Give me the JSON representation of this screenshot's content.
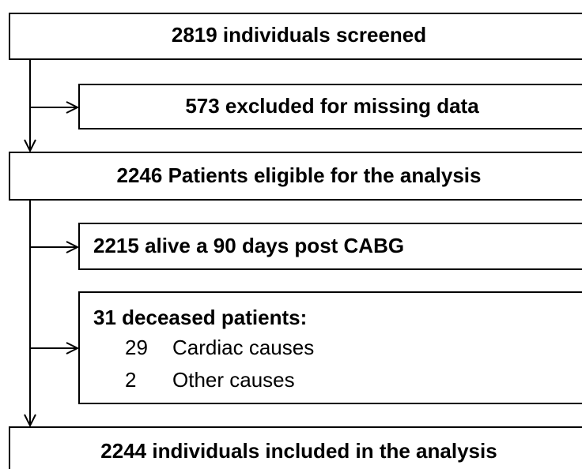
{
  "nodes": [
    {
      "label": "2819 individuals screened"
    },
    {
      "label": "573 excluded for missing data"
    },
    {
      "label": "2246 Patients eligible for the analysis"
    },
    {
      "label": "2215 alive a 90 days post CABG"
    },
    {
      "label": "31 deceased patients:",
      "items": [
        {
          "count": "29",
          "cause": "Cardiac causes"
        },
        {
          "count": "2",
          "cause": "Other causes"
        }
      ]
    },
    {
      "label": "2244 individuals included in the analysis"
    }
  ]
}
